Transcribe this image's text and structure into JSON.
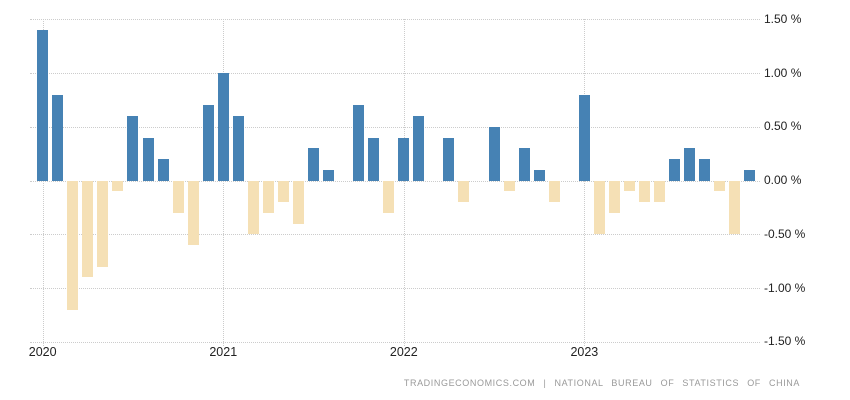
{
  "chart_data": {
    "type": "bar",
    "title": "",
    "xlabel": "",
    "ylabel": "",
    "ylim": [
      -1.5,
      1.5
    ],
    "grid": true,
    "legend": "none",
    "y_ticks": [
      "1.50 %",
      "1.00 %",
      "0.50 %",
      "0.00 %",
      "-0.50 %",
      "-1.00 %",
      "-1.50 %"
    ],
    "y_tick_values": [
      1.5,
      1.0,
      0.5,
      0.0,
      -0.5,
      -1.0,
      -1.5
    ],
    "x_year_labels": [
      "2020",
      "2021",
      "2022",
      "2023"
    ],
    "months": [
      "Jan 2020",
      "Feb 2020",
      "Mar 2020",
      "Apr 2020",
      "May 2020",
      "Jun 2020",
      "Jul 2020",
      "Aug 2020",
      "Sep 2020",
      "Oct 2020",
      "Nov 2020",
      "Dec 2020",
      "Jan 2021",
      "Feb 2021",
      "Mar 2021",
      "Apr 2021",
      "May 2021",
      "Jun 2021",
      "Jul 2021",
      "Aug 2021",
      "Sep 2021",
      "Oct 2021",
      "Nov 2021",
      "Dec 2021",
      "Jan 2022",
      "Feb 2022",
      "Mar 2022",
      "Apr 2022",
      "May 2022",
      "Jun 2022",
      "Jul 2022",
      "Aug 2022",
      "Sep 2022",
      "Oct 2022",
      "Nov 2022",
      "Dec 2022",
      "Jan 2023",
      "Feb 2023",
      "Mar 2023",
      "Apr 2023",
      "May 2023",
      "Jun 2023",
      "Jul 2023",
      "Aug 2023",
      "Sep 2023",
      "Oct 2023",
      "Nov 2023",
      "Dec 2023"
    ],
    "values": [
      1.4,
      0.8,
      -1.2,
      -0.9,
      -0.8,
      -0.1,
      0.6,
      0.4,
      0.2,
      -0.3,
      -0.6,
      0.7,
      1.0,
      0.6,
      -0.5,
      -0.3,
      -0.2,
      -0.4,
      0.3,
      0.1,
      0.0,
      0.7,
      0.4,
      -0.3,
      0.4,
      0.6,
      0.0,
      0.4,
      -0.2,
      0.0,
      0.5,
      -0.1,
      0.3,
      0.1,
      -0.2,
      0.0,
      0.8,
      -0.5,
      -0.3,
      -0.1,
      -0.2,
      -0.2,
      0.2,
      0.3,
      0.2,
      -0.1,
      -0.5,
      0.1
    ],
    "positive_color": "#4682b4",
    "negative_color": "#f5e0b5",
    "gridline_color": "#cccccc"
  },
  "footer": {
    "attribution": "TRADINGECONOMICS.COM | NATIONAL BUREAU OF STATISTICS OF CHINA"
  }
}
